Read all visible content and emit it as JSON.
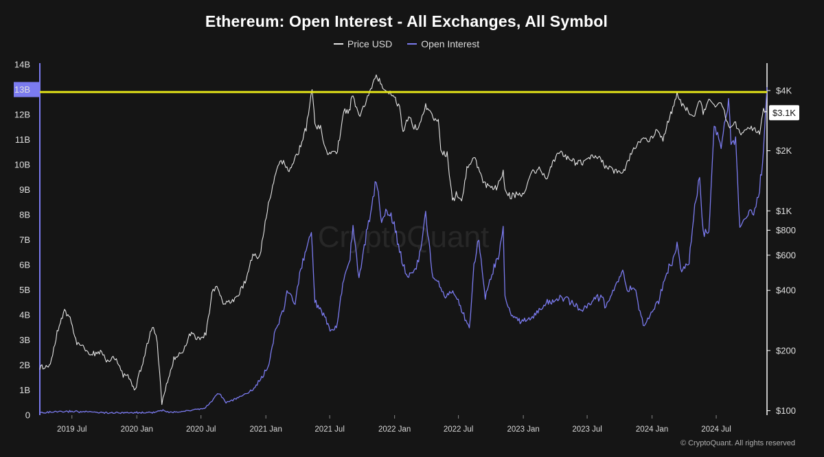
{
  "chart_data": {
    "type": "line",
    "title": "Ethereum: Open Interest - All Exchanges, All Symbol",
    "legend": [
      "Price USD",
      "Open Interest"
    ],
    "legend_placement": "top-center",
    "watermark": "CryptoQuant",
    "footer": "© CryptoQuant. All rights reserved",
    "colors": {
      "background": "#151515",
      "price": "#e6e6e6",
      "open_interest": "#7b7bf0",
      "threshold": "#e6e619",
      "left_axis": "#7b7bf0"
    },
    "x_ticks": [
      "2019 Jul",
      "2020 Jan",
      "2020 Jul",
      "2021 Jan",
      "2021 Jul",
      "2022 Jan",
      "2022 Jul",
      "2023 Jan",
      "2023 Jul",
      "2024 Jan",
      "2024 Jul"
    ],
    "xlim": [
      "2019-04-01",
      "2024-11-22"
    ],
    "left_axis": {
      "ticks": [
        "0",
        "1B",
        "2B",
        "3B",
        "4B",
        "5B",
        "6B",
        "7B",
        "8B",
        "9B",
        "10B",
        "11B",
        "12B",
        "13B",
        "14B"
      ],
      "ylim": [
        0,
        14000000000
      ],
      "highlight_label": "13B"
    },
    "right_axis": {
      "scale": "log",
      "ticks": [
        "$100",
        "$200",
        "$400",
        "$600",
        "$800",
        "$1K",
        "$2K",
        "$4K"
      ],
      "tick_values": [
        100,
        200,
        400,
        600,
        800,
        1000,
        2000,
        4000
      ],
      "ylim": [
        95,
        5400
      ],
      "current_label": "$3.1K",
      "current_value": 3100
    },
    "threshold_line": {
      "value": 12.9,
      "unit": "B"
    },
    "series": [
      {
        "name": "Price USD",
        "x": [
          "2019-04-01",
          "2019-05-01",
          "2019-05-20",
          "2019-06-10",
          "2019-06-26",
          "2019-07-15",
          "2019-08-05",
          "2019-08-25",
          "2019-09-20",
          "2019-10-10",
          "2019-11-01",
          "2019-11-20",
          "2019-12-10",
          "2019-12-28",
          "2020-01-15",
          "2020-02-14",
          "2020-02-28",
          "2020-03-12",
          "2020-03-25",
          "2020-04-15",
          "2020-05-10",
          "2020-06-01",
          "2020-06-25",
          "2020-07-15",
          "2020-08-01",
          "2020-08-15",
          "2020-09-05",
          "2020-09-25",
          "2020-10-15",
          "2020-11-10",
          "2020-11-25",
          "2020-12-15",
          "2021-01-05",
          "2021-01-20",
          "2021-02-10",
          "2021-02-20",
          "2021-03-05",
          "2021-03-20",
          "2021-04-10",
          "2021-04-25",
          "2021-05-12",
          "2021-05-20",
          "2021-06-05",
          "2021-06-25",
          "2021-07-10",
          "2021-07-20",
          "2021-08-10",
          "2021-08-25",
          "2021-09-05",
          "2021-09-22",
          "2021-10-10",
          "2021-10-25",
          "2021-11-10",
          "2021-11-25",
          "2021-12-10",
          "2021-12-28",
          "2022-01-15",
          "2022-01-25",
          "2022-02-10",
          "2022-02-25",
          "2022-03-10",
          "2022-03-30",
          "2022-04-20",
          "2022-05-05",
          "2022-05-12",
          "2022-05-30",
          "2022-06-14",
          "2022-06-25",
          "2022-07-10",
          "2022-07-25",
          "2022-08-14",
          "2022-08-30",
          "2022-09-15",
          "2022-10-01",
          "2022-10-20",
          "2022-11-05",
          "2022-11-10",
          "2022-11-25",
          "2022-12-15",
          "2023-01-05",
          "2023-01-25",
          "2023-02-15",
          "2023-03-10",
          "2023-03-25",
          "2023-04-15",
          "2023-05-10",
          "2023-06-15",
          "2023-07-15",
          "2023-08-05",
          "2023-08-20",
          "2023-09-15",
          "2023-10-10",
          "2023-10-25",
          "2023-11-10",
          "2023-12-08",
          "2023-12-28",
          "2024-01-15",
          "2024-02-01",
          "2024-02-20",
          "2024-03-12",
          "2024-03-25",
          "2024-04-15",
          "2024-05-01",
          "2024-05-15",
          "2024-05-25",
          "2024-06-10",
          "2024-06-25",
          "2024-07-15",
          "2024-08-05",
          "2024-08-25",
          "2024-09-06",
          "2024-09-25",
          "2024-10-15",
          "2024-11-01",
          "2024-11-12",
          "2024-11-22"
        ],
        "values": [
          163,
          170,
          250,
          310,
          290,
          220,
          210,
          190,
          195,
          180,
          182,
          155,
          145,
          130,
          165,
          270,
          225,
          110,
          135,
          180,
          200,
          240,
          235,
          240,
          390,
          420,
          340,
          355,
          380,
          470,
          600,
          590,
          1000,
          1350,
          1800,
          1780,
          1600,
          1750,
          2100,
          2600,
          4100,
          2700,
          2600,
          1900,
          2000,
          1900,
          3100,
          3200,
          3800,
          3000,
          3500,
          4100,
          4700,
          4300,
          4000,
          3800,
          3300,
          2500,
          3000,
          2600,
          2600,
          3400,
          2900,
          2800,
          2000,
          1900,
          1150,
          1200,
          1100,
          1600,
          1900,
          1550,
          1350,
          1330,
          1300,
          1580,
          1250,
          1170,
          1200,
          1250,
          1600,
          1600,
          1450,
          1760,
          2000,
          1800,
          1730,
          1880,
          1840,
          1660,
          1590,
          1560,
          1800,
          2050,
          2300,
          2300,
          2500,
          2300,
          2900,
          3850,
          3400,
          3150,
          2900,
          3700,
          3050,
          3600,
          3400,
          3450,
          2650,
          2700,
          2400,
          2600,
          2600,
          2450,
          3200,
          3100
        ]
      },
      {
        "name": "Open Interest",
        "x": [
          "2019-04-01",
          "2019-07-01",
          "2019-10-01",
          "2020-01-01",
          "2020-02-14",
          "2020-03-12",
          "2020-04-01",
          "2020-06-01",
          "2020-07-15",
          "2020-08-20",
          "2020-09-10",
          "2020-10-15",
          "2020-11-25",
          "2020-12-20",
          "2021-01-10",
          "2021-01-25",
          "2021-02-20",
          "2021-03-05",
          "2021-03-25",
          "2021-04-10",
          "2021-05-10",
          "2021-05-20",
          "2021-06-01",
          "2021-06-20",
          "2021-07-05",
          "2021-07-20",
          "2021-08-10",
          "2021-08-25",
          "2021-09-05",
          "2021-09-22",
          "2021-10-10",
          "2021-10-25",
          "2021-11-10",
          "2021-11-25",
          "2021-12-10",
          "2021-12-28",
          "2022-01-15",
          "2022-01-25",
          "2022-02-10",
          "2022-02-25",
          "2022-03-10",
          "2022-03-30",
          "2022-04-20",
          "2022-05-12",
          "2022-05-25",
          "2022-06-18",
          "2022-07-10",
          "2022-08-01",
          "2022-08-14",
          "2022-08-28",
          "2022-09-15",
          "2022-10-01",
          "2022-10-25",
          "2022-11-05",
          "2022-11-10",
          "2022-11-25",
          "2022-12-20",
          "2023-01-20",
          "2023-02-15",
          "2023-03-10",
          "2023-03-25",
          "2023-04-15",
          "2023-05-10",
          "2023-06-15",
          "2023-07-15",
          "2023-08-15",
          "2023-08-20",
          "2023-09-15",
          "2023-10-10",
          "2023-10-25",
          "2023-11-10",
          "2023-12-10",
          "2024-01-05",
          "2024-01-20",
          "2024-02-15",
          "2024-03-01",
          "2024-03-12",
          "2024-03-25",
          "2024-04-15",
          "2024-05-01",
          "2024-05-15",
          "2024-05-25",
          "2024-06-10",
          "2024-06-25",
          "2024-07-15",
          "2024-08-05",
          "2024-08-12",
          "2024-08-25",
          "2024-09-06",
          "2024-09-20",
          "2024-10-05",
          "2024-10-15",
          "2024-11-01",
          "2024-11-12",
          "2024-11-22"
        ],
        "values": [
          0.1,
          0.15,
          0.1,
          0.1,
          0.1,
          0.2,
          0.1,
          0.2,
          0.3,
          0.9,
          0.5,
          0.7,
          1.0,
          1.5,
          2.0,
          3.2,
          4.3,
          5.0,
          4.5,
          5.8,
          7.3,
          4.5,
          4.3,
          3.8,
          3.3,
          3.5,
          5.5,
          6.0,
          7.5,
          5.5,
          7.0,
          8.0,
          9.5,
          7.8,
          8.2,
          7.8,
          6.5,
          6.0,
          5.5,
          5.8,
          6.2,
          8.0,
          5.5,
          5.1,
          4.7,
          5.0,
          4.2,
          3.4,
          6.0,
          7.0,
          4.7,
          5.5,
          6.5,
          7.5,
          4.8,
          4.0,
          3.8,
          3.8,
          4.2,
          4.5,
          4.5,
          4.7,
          4.6,
          4.1,
          4.6,
          4.8,
          4.3,
          5.0,
          5.8,
          4.9,
          5.2,
          3.5,
          4.2,
          4.6,
          5.8,
          6.2,
          6.8,
          5.8,
          6.1,
          8.3,
          9.6,
          7.2,
          7.3,
          11.5,
          10.8,
          12.5,
          11.0,
          11.0,
          7.4,
          7.8,
          8.2,
          8.0,
          9.0,
          10.5,
          13.1
        ]
      }
    ]
  }
}
